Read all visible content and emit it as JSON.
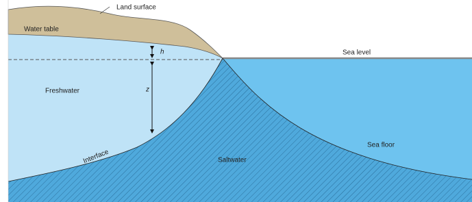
{
  "labels": {
    "land_surface": "Land surface",
    "water_table": "Water table",
    "h": "h",
    "sea_level": "Sea level",
    "freshwater": "Freshwater",
    "z": "z",
    "interface": "Interface",
    "saltwater": "Saltwater",
    "sea_floor": "Sea floor"
  }
}
